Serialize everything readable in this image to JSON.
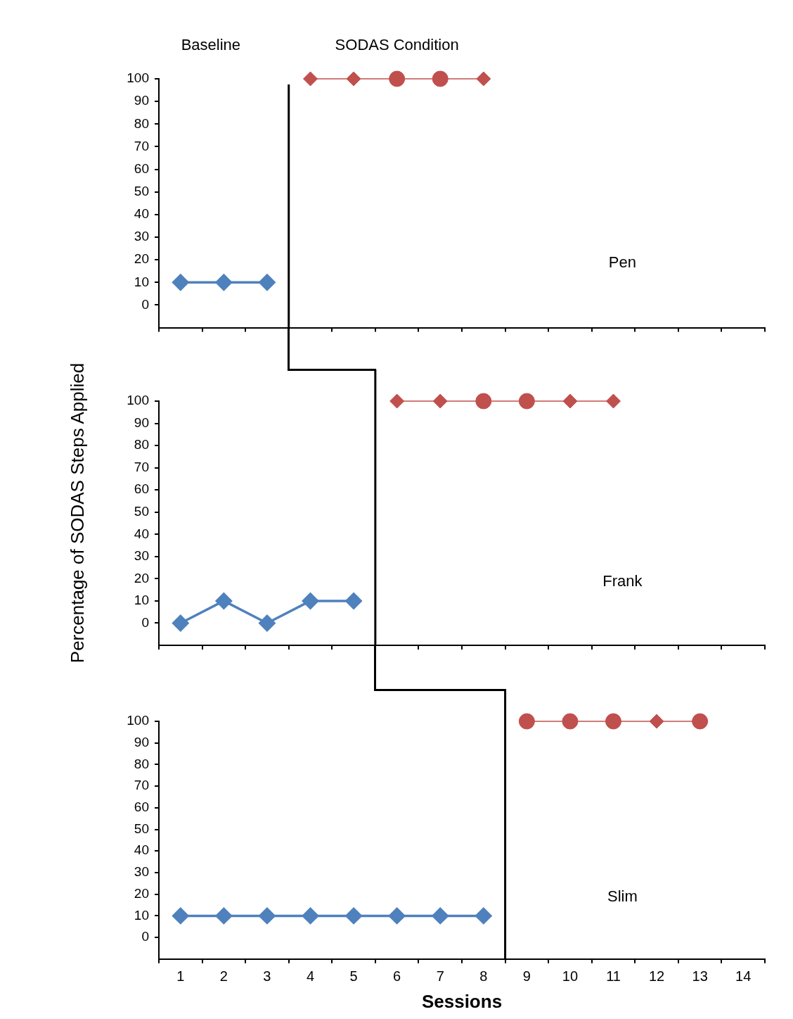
{
  "chart_data": [
    {
      "type": "line",
      "title": "Pen",
      "annotations": [
        "Baseline",
        "SODAS Condition"
      ],
      "xlim": [
        0.5,
        14.5
      ],
      "xticks": [
        1,
        2,
        3,
        4,
        5,
        6,
        7,
        8,
        9,
        10,
        11,
        12,
        13,
        14
      ],
      "ylim": [
        -10,
        100
      ],
      "yticks": [
        0,
        10,
        20,
        30,
        40,
        50,
        60,
        70,
        80,
        90,
        100
      ],
      "tick_labels": "y",
      "legend": false,
      "ref_lines": [
        {
          "axis": "x",
          "value": 3.5,
          "color": "#000000"
        }
      ],
      "series": [
        {
          "color": "#4f81bd",
          "marker": "diamond",
          "x": [
            1,
            2,
            3
          ],
          "values": [
            10,
            10,
            10
          ]
        },
        {
          "color": "#c0504d",
          "marker": "none",
          "x": [
            4,
            5,
            6,
            7,
            8
          ],
          "values": [
            100,
            100,
            100,
            100,
            100
          ]
        },
        {
          "type": "scatter",
          "color": "#c0504d",
          "marker": "diamond",
          "x": [
            4,
            5,
            8
          ],
          "values": [
            100,
            100,
            100
          ]
        },
        {
          "type": "scatter",
          "color": "#c0504d",
          "marker": "circle",
          "x": [
            6,
            7
          ],
          "values": [
            100,
            100
          ]
        }
      ]
    },
    {
      "type": "line",
      "title": "Frank",
      "ylabel": "Percentage of SODAS Steps Applied",
      "xlim": [
        0.5,
        14.5
      ],
      "xticks": [
        1,
        2,
        3,
        4,
        5,
        6,
        7,
        8,
        9,
        10,
        11,
        12,
        13,
        14
      ],
      "ylim": [
        -10,
        100
      ],
      "yticks": [
        0,
        10,
        20,
        30,
        40,
        50,
        60,
        70,
        80,
        90,
        100
      ],
      "tick_labels": "y",
      "legend": false,
      "ref_lines": [
        {
          "axis": "x",
          "value": 5.5,
          "color": "#000000"
        }
      ],
      "series": [
        {
          "color": "#4f81bd",
          "marker": "diamond",
          "x": [
            1,
            2,
            3,
            4,
            5
          ],
          "values": [
            0,
            10,
            0,
            10,
            10
          ]
        },
        {
          "color": "#c0504d",
          "marker": "none",
          "x": [
            6,
            7,
            8,
            9,
            10,
            11
          ],
          "values": [
            100,
            100,
            100,
            100,
            100,
            100
          ]
        },
        {
          "type": "scatter",
          "color": "#c0504d",
          "marker": "diamond",
          "x": [
            6,
            7,
            10,
            11
          ],
          "values": [
            100,
            100,
            100,
            100
          ]
        },
        {
          "type": "scatter",
          "color": "#c0504d",
          "marker": "circle",
          "x": [
            8,
            9
          ],
          "values": [
            100,
            100
          ]
        }
      ]
    },
    {
      "type": "line",
      "title": "Slim",
      "xlabel": "Sessions",
      "xlim": [
        0.5,
        14.5
      ],
      "xticks": [
        1,
        2,
        3,
        4,
        5,
        6,
        7,
        8,
        9,
        10,
        11,
        12,
        13,
        14
      ],
      "ylim": [
        -10,
        100
      ],
      "yticks": [
        0,
        10,
        20,
        30,
        40,
        50,
        60,
        70,
        80,
        90,
        100
      ],
      "legend": false,
      "ref_lines": [
        {
          "axis": "x",
          "value": 8.5,
          "color": "#000000"
        }
      ],
      "series": [
        {
          "color": "#4f81bd",
          "marker": "diamond",
          "x": [
            1,
            2,
            3,
            4,
            5,
            6,
            7,
            8
          ],
          "values": [
            10,
            10,
            10,
            10,
            10,
            10,
            10,
            10
          ]
        },
        {
          "color": "#c0504d",
          "marker": "none",
          "x": [
            9,
            10,
            11,
            12,
            13
          ],
          "values": [
            100,
            100,
            100,
            100,
            100
          ]
        },
        {
          "type": "scatter",
          "color": "#c0504d",
          "marker": "circle",
          "x": [
            9,
            10,
            11,
            13
          ],
          "values": [
            100,
            100,
            100,
            100
          ]
        },
        {
          "type": "scatter",
          "color": "#c0504d",
          "marker": "diamond",
          "x": [
            12
          ],
          "values": [
            100
          ]
        }
      ]
    }
  ]
}
